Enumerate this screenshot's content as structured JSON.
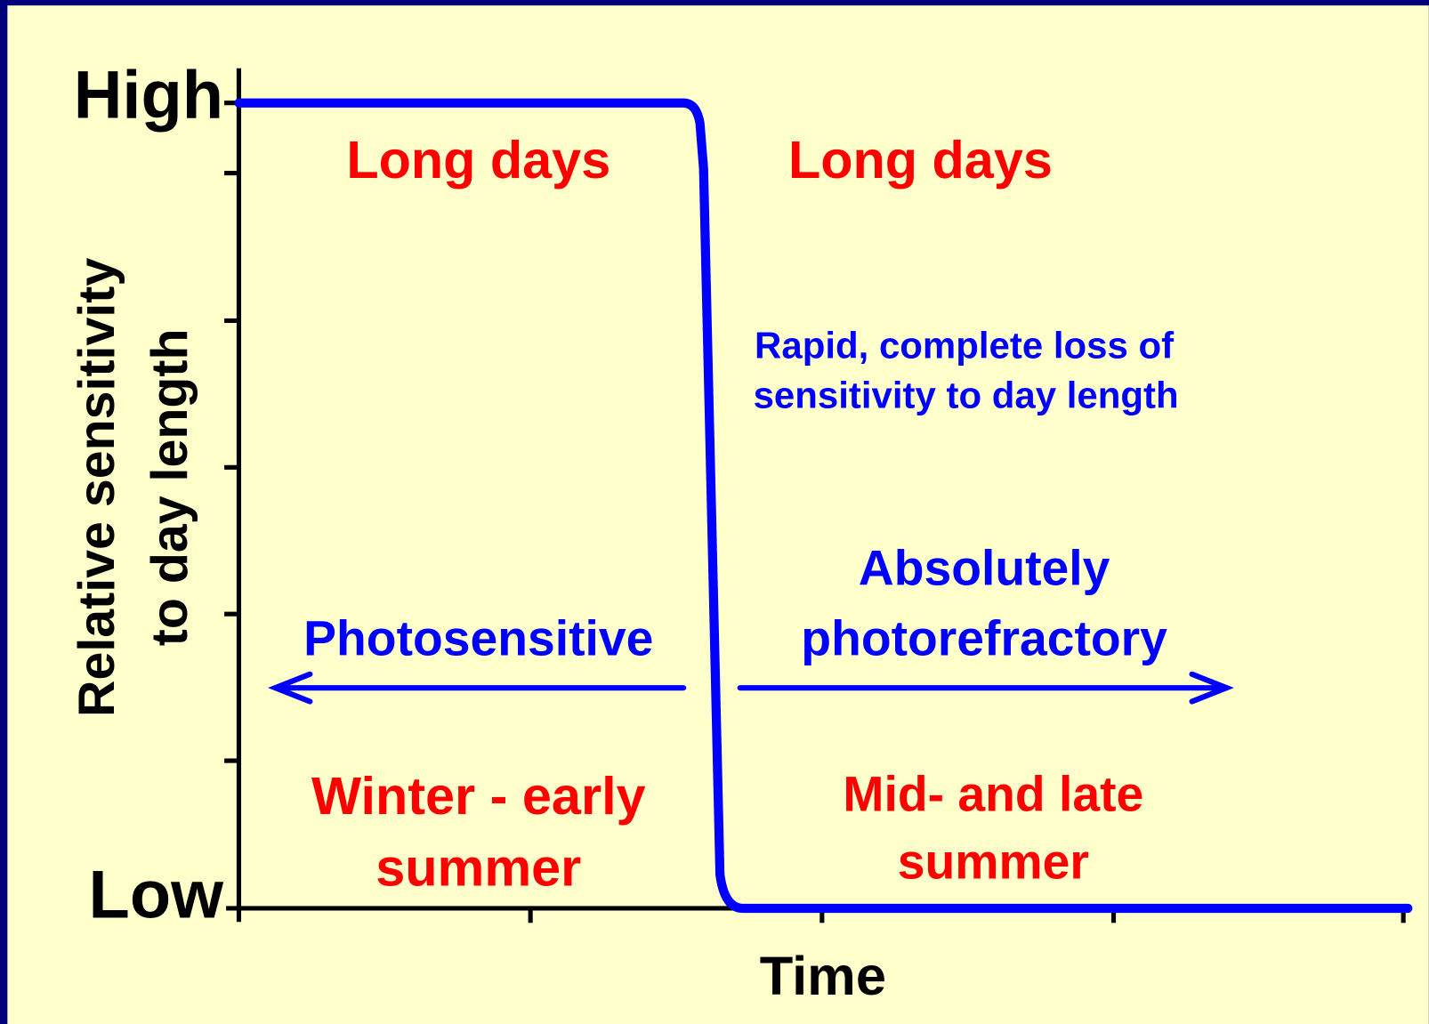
{
  "axes": {
    "y_high": "High",
    "y_low": "Low",
    "y_title": [
      "Relative sensitivity",
      "to day length"
    ],
    "x_title": "Time"
  },
  "labels": {
    "long_days_left": "Long days",
    "long_days_right": "Long days",
    "transition": [
      "Rapid, complete loss of",
      "sensitivity to day length"
    ],
    "photosensitive": "Photosensitive",
    "photorefractory": [
      "Absolutely",
      "photorefractory"
    ],
    "season_left": [
      "Winter - early",
      "summer"
    ],
    "season_right": [
      "Mid- and late",
      "summer"
    ]
  }
}
